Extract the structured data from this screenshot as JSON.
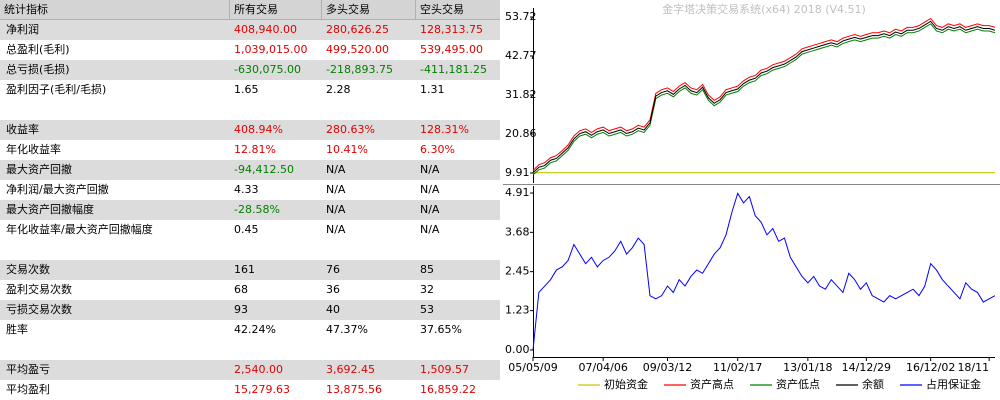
{
  "table": {
    "header": [
      "统计指标",
      "所有交易",
      "多头交易",
      "空头交易"
    ],
    "groups": [
      [
        {
          "label": "净利润",
          "values": [
            "408,940.00",
            "280,626.25",
            "128,313.75"
          ],
          "colors": [
            "#e00000",
            "#e00000",
            "#e00000"
          ]
        },
        {
          "label": "总盈利(毛利)",
          "values": [
            "1,039,015.00",
            "499,520.00",
            "539,495.00"
          ],
          "colors": [
            "#e00000",
            "#e00000",
            "#e00000"
          ]
        },
        {
          "label": "总亏损(毛损)",
          "values": [
            "-630,075.00",
            "-218,893.75",
            "-411,181.25"
          ],
          "colors": [
            "#008000",
            "#008000",
            "#008000"
          ]
        },
        {
          "label": "盈利因子(毛利/毛损)",
          "values": [
            "1.65",
            "2.28",
            "1.31"
          ]
        }
      ],
      [
        {
          "label": "收益率",
          "values": [
            "408.94%",
            "280.63%",
            "128.31%"
          ],
          "colors": [
            "#e00000",
            "#e00000",
            "#e00000"
          ]
        },
        {
          "label": "年化收益率",
          "values": [
            "12.81%",
            "10.41%",
            "6.30%"
          ],
          "colors": [
            "#e00000",
            "#e00000",
            "#e00000"
          ]
        },
        {
          "label": "最大资产回撤",
          "values": [
            "-94,412.50",
            "N/A",
            "N/A"
          ],
          "colors": [
            "#008000",
            "#000000",
            "#000000"
          ]
        },
        {
          "label": "净利润/最大资产回撤",
          "values": [
            "4.33",
            "N/A",
            "N/A"
          ]
        },
        {
          "label": "最大资产回撤幅度",
          "values": [
            "-28.58%",
            "N/A",
            "N/A"
          ],
          "colors": [
            "#008000",
            "#000000",
            "#000000"
          ]
        },
        {
          "label": "年化收益率/最大资产回撤幅度",
          "values": [
            "0.45",
            "N/A",
            "N/A"
          ]
        }
      ],
      [
        {
          "label": "交易次数",
          "values": [
            "161",
            "76",
            "85"
          ]
        },
        {
          "label": "盈利交易次数",
          "values": [
            "68",
            "36",
            "32"
          ]
        },
        {
          "label": "亏损交易次数",
          "values": [
            "93",
            "40",
            "53"
          ]
        },
        {
          "label": "胜率",
          "values": [
            "42.24%",
            "47.37%",
            "37.65%"
          ]
        }
      ],
      [
        {
          "label": "平均盈亏",
          "values": [
            "2,540.00",
            "3,692.45",
            "1,509.57"
          ],
          "colors": [
            "#e00000",
            "#e00000",
            "#e00000"
          ]
        },
        {
          "label": "平均盈利",
          "values": [
            "15,279.63",
            "13,875.56",
            "16,859.22"
          ],
          "colors": [
            "#e00000",
            "#e00000",
            "#e00000"
          ]
        }
      ]
    ]
  },
  "chart_data": [
    {
      "type": "line",
      "title": "金字塔决策交易系统(x64) 2018 (V4.51)",
      "xlim": [
        0,
        79
      ],
      "ylim": [
        7.1,
        56.25
      ],
      "yticks": [
        53.72,
        42.77,
        31.82,
        20.86,
        9.91
      ],
      "series": [
        {
          "name": "初始资金",
          "color": "#c8c400",
          "value": 10
        },
        {
          "name": "资产高点",
          "color": "#ff0000",
          "values": [
            10.6,
            12.2,
            12.8,
            14.2,
            14.8,
            16.2,
            17.8,
            20.3,
            21.8,
            22.3,
            21.3,
            22.3,
            22.8,
            21.8,
            22.3,
            22.8,
            21.8,
            22.3,
            23.3,
            22.8,
            24.8,
            32.3,
            33.3,
            33.8,
            32.8,
            34.3,
            35.3,
            33.8,
            33.3,
            34.8,
            31.8,
            30.3,
            31.3,
            33.3,
            33.8,
            34.3,
            35.8,
            36.8,
            37.3,
            38.8,
            39.3,
            40.3,
            40.8,
            41.3,
            42.3,
            43.3,
            44.8,
            45.3,
            45.8,
            46.3,
            46.8,
            47.3,
            46.8,
            47.8,
            48.3,
            48.8,
            48.3,
            48.8,
            49.3,
            49.3,
            49.8,
            49.3,
            50.3,
            49.8,
            50.8,
            50.8,
            51.3,
            52.3,
            53.3,
            51.3,
            50.8,
            51.8,
            51.3,
            51.8,
            50.8,
            51.3,
            51.8,
            51.3,
            51.3,
            50.8
          ]
        },
        {
          "name": "资产低点",
          "color": "#008000",
          "values": [
            9.4,
            10.8,
            11.3,
            12.8,
            13.3,
            14.8,
            16.3,
            18.8,
            20.3,
            20.8,
            19.8,
            20.8,
            21.3,
            20.3,
            20.8,
            21.3,
            20.3,
            20.8,
            21.8,
            21.3,
            23.3,
            30.8,
            31.8,
            32.3,
            31.3,
            32.8,
            33.8,
            32.3,
            31.8,
            33.3,
            30.3,
            28.8,
            29.8,
            31.8,
            32.3,
            32.8,
            34.3,
            35.3,
            35.8,
            37.3,
            37.8,
            38.8,
            39.3,
            39.8,
            40.8,
            41.8,
            43.3,
            43.8,
            44.3,
            44.8,
            45.3,
            45.8,
            45.3,
            46.3,
            46.8,
            47.3,
            46.8,
            47.3,
            47.8,
            47.8,
            48.3,
            47.8,
            48.8,
            48.3,
            49.3,
            49.3,
            49.8,
            50.8,
            51.8,
            49.8,
            49.3,
            50.3,
            49.8,
            50.3,
            49.3,
            49.8,
            50.3,
            49.8,
            49.8,
            49.3
          ]
        },
        {
          "name": "余额",
          "color": "#000000",
          "values": [
            10.0,
            11.5,
            12.0,
            13.5,
            14.0,
            15.5,
            17.0,
            19.5,
            21.0,
            21.5,
            20.5,
            21.5,
            22.0,
            21.0,
            21.5,
            22.0,
            21.0,
            21.5,
            22.5,
            22.0,
            24.0,
            31.5,
            32.5,
            33.0,
            32.0,
            33.5,
            34.5,
            33.0,
            32.5,
            34.0,
            31.0,
            29.5,
            30.5,
            32.5,
            33.0,
            33.5,
            35.0,
            36.0,
            36.5,
            38.0,
            38.5,
            39.5,
            40.0,
            40.5,
            41.5,
            42.5,
            44.0,
            44.5,
            45.0,
            45.5,
            46.0,
            46.5,
            46.0,
            47.0,
            47.5,
            48.0,
            47.5,
            48.0,
            48.5,
            48.5,
            49.0,
            48.5,
            49.5,
            49.0,
            50.0,
            50.0,
            50.5,
            51.5,
            52.5,
            50.5,
            50.0,
            51.0,
            50.5,
            51.0,
            50.0,
            50.5,
            51.0,
            50.5,
            50.5,
            50.0
          ]
        }
      ]
    },
    {
      "type": "line",
      "xlim": [
        0,
        79
      ],
      "ylim": [
        -0.22,
        5.13
      ],
      "yticks": [
        4.91,
        3.68,
        2.45,
        1.23,
        {
          "value": 0,
          "label": "0.00"
        }
      ],
      "xticks": [
        {
          "value": 0,
          "label": "05/05/09"
        },
        {
          "value": 12,
          "label": "07/04/06"
        },
        {
          "value": 23,
          "label": "09/03/12"
        },
        {
          "value": 35,
          "label": "11/02/17"
        },
        {
          "value": 47,
          "label": "13/01/18"
        },
        {
          "value": 57,
          "label": "14/12/29"
        },
        {
          "value": 68,
          "label": "16/12/02"
        },
        {
          "value": 78,
          "label": "18/11"
        }
      ],
      "series": [
        {
          "name": "占用保证金",
          "color": "#0000ff",
          "values": [
            0.0,
            1.8,
            2.0,
            2.2,
            2.5,
            2.6,
            2.8,
            3.3,
            3.0,
            2.7,
            2.9,
            2.6,
            2.8,
            2.9,
            3.1,
            3.4,
            3.0,
            3.2,
            3.5,
            3.3,
            1.7,
            1.6,
            1.7,
            2.0,
            1.8,
            2.2,
            2.0,
            2.3,
            2.5,
            2.4,
            2.7,
            3.0,
            3.2,
            3.6,
            4.3,
            4.9,
            4.6,
            4.8,
            4.2,
            4.0,
            3.6,
            3.8,
            3.4,
            3.5,
            2.9,
            2.6,
            2.3,
            2.1,
            2.3,
            2.0,
            1.9,
            2.2,
            2.0,
            1.8,
            2.4,
            2.2,
            1.9,
            2.1,
            1.7,
            1.6,
            1.5,
            1.7,
            1.6,
            1.7,
            1.8,
            1.9,
            1.7,
            2.0,
            2.7,
            2.5,
            2.2,
            2.0,
            1.8,
            1.6,
            2.1,
            1.9,
            1.8,
            1.5,
            1.6,
            1.7
          ]
        }
      ]
    }
  ]
}
